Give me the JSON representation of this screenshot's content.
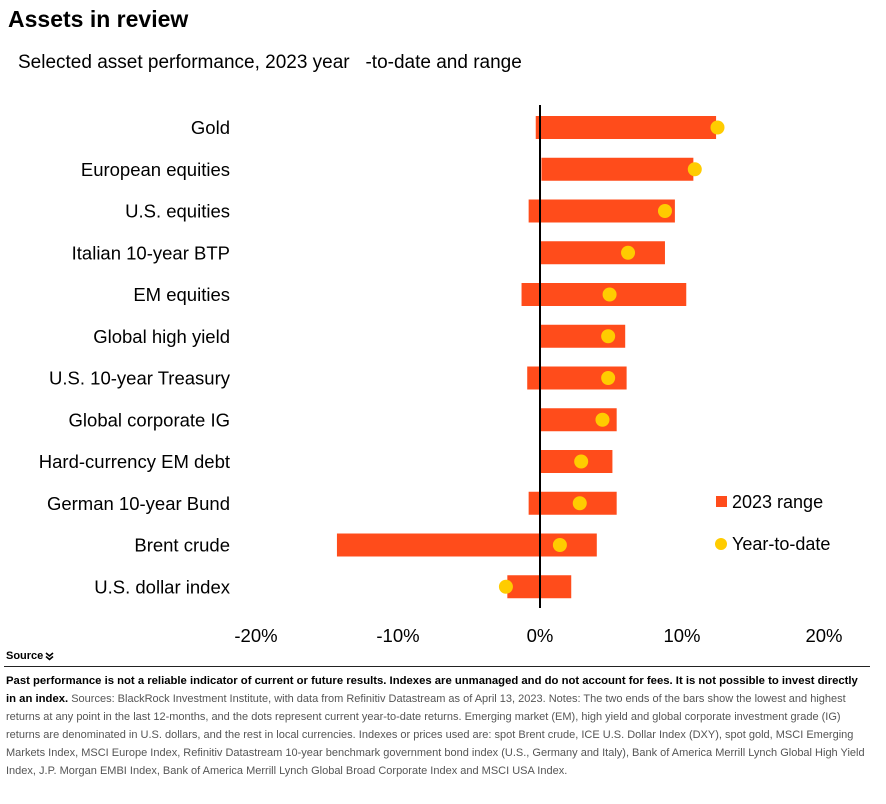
{
  "header": {
    "title": "Assets in review",
    "subtitle": "Selected asset performance, 2023 year   -to-date and range"
  },
  "colors": {
    "bar": "#ff4c1b",
    "dot": "#ffcc00",
    "axis": "#000000"
  },
  "chart_data": {
    "type": "bar",
    "orientation": "horizontal",
    "title": "",
    "xlabel": "",
    "ylabel": "",
    "xlim": [
      -20,
      20
    ],
    "x_ticks": [
      -20,
      -10,
      0,
      10,
      20
    ],
    "x_tick_labels": [
      "-20%",
      "-10%",
      "0%",
      "10%",
      "20%"
    ],
    "grid": false,
    "legend_position": "right",
    "categories": [
      "Gold",
      "European equities",
      "U.S. equities",
      "Italian 10-year BTP",
      "EM equities",
      "Global high yield",
      "U.S. 10-year Treasury",
      "Global corporate IG",
      "Hard-currency EM debt",
      "German 10-year Bund",
      "Brent crude",
      "U.S. dollar index"
    ],
    "series": [
      {
        "name": "2023 range",
        "kind": "range",
        "low": [
          -0.3,
          0.1,
          -0.8,
          0.0,
          -1.3,
          0.0,
          -0.9,
          0.0,
          0.0,
          -0.8,
          -14.3,
          -2.3
        ],
        "high": [
          12.4,
          10.8,
          9.5,
          8.8,
          10.3,
          6.0,
          6.1,
          5.4,
          5.1,
          5.4,
          4.0,
          2.2
        ]
      },
      {
        "name": "Year-to-date",
        "kind": "point",
        "values": [
          12.5,
          10.9,
          8.8,
          6.2,
          4.9,
          4.8,
          4.8,
          4.4,
          2.9,
          2.8,
          1.4,
          -2.4
        ]
      }
    ]
  },
  "footer": {
    "source_label": "Source",
    "disclaimer": "Past performance is not a reliable indicator of current or future results. Indexes are unmanaged and do not account for fees. It is not possible to invest directly in an index.",
    "notes": "Sources: BlackRock Investment Institute, with data from Refinitiv Datastream as of April 13, 2023. Notes: The two ends of the bars show the lowest and highest returns at any point in the last 12-months, and the dots represent current year-to-date returns. Emerging market (EM), high yield and global corporate investment grade (IG) returns are denominated in U.S. dollars, and the rest in local currencies. Indexes or prices used are: spot Brent crude, ICE U.S. Dollar Index (DXY), spot gold, MSCI Emerging Markets Index, MSCI Europe Index, Refinitiv Datastream 10-year benchmark government bond index (U.S., Germany and Italy), Bank of America Merrill Lynch Global High Yield Index, J.P. Morgan EMBI Index, Bank of America Merrill Lynch Global Broad Corporate Index and MSCI USA Index."
  }
}
